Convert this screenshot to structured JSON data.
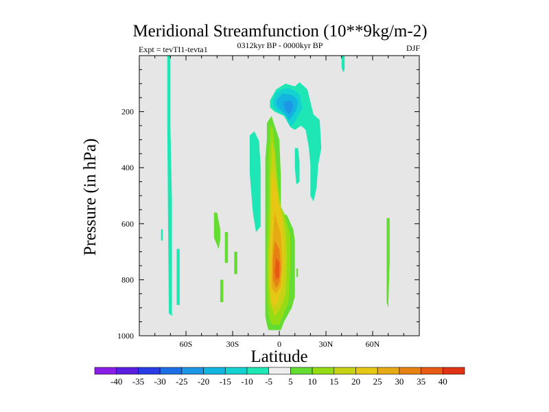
{
  "chart_data": {
    "type": "contour",
    "title": "Meridional Streamfunction (10**9kg/m-2)",
    "subtitle_left": "Expt = tevTI1-tevta1",
    "subtitle_center": "0312kyr BP - 0000kyr BP",
    "subtitle_right": "DJF",
    "xlabel": "Latitude",
    "ylabel": "Pressure (in hPa)",
    "xlim": [
      -90,
      90
    ],
    "ylim": [
      1000,
      0
    ],
    "x_ticks": [
      {
        "value": -60,
        "label": "60S"
      },
      {
        "value": -30,
        "label": "30S"
      },
      {
        "value": 0,
        "label": "0"
      },
      {
        "value": 30,
        "label": "30N"
      },
      {
        "value": 60,
        "label": "60N"
      }
    ],
    "y_ticks": [
      {
        "value": 200,
        "label": "200"
      },
      {
        "value": 400,
        "label": "400"
      },
      {
        "value": 600,
        "label": "600"
      },
      {
        "value": 800,
        "label": "800"
      },
      {
        "value": 1000,
        "label": "1000"
      }
    ],
    "levels": [
      -40,
      -35,
      -30,
      -25,
      -20,
      -15,
      -10,
      -5,
      5,
      10,
      15,
      20,
      25,
      30,
      35,
      40
    ],
    "colors": [
      "#8a1ee6",
      "#5a1ee0",
      "#2a3ce6",
      "#1e6ee6",
      "#1e96e6",
      "#14b4e0",
      "#14d2d2",
      "#1ee6b4",
      "#eeeeee",
      "#64dc32",
      "#96dc14",
      "#c8d214",
      "#e6c814",
      "#e6aa14",
      "#e68214",
      "#e65a14",
      "#e03214"
    ],
    "background": "#e6e6e6",
    "regions": [
      {
        "level": "-5",
        "poly": [
          [
            -72,
            0
          ],
          [
            -70,
            0
          ],
          [
            -70,
            250
          ],
          [
            -69,
            520
          ],
          [
            -69,
            930
          ],
          [
            -71,
            920
          ],
          [
            -71.5,
            600
          ],
          [
            -72,
            250
          ]
        ]
      },
      {
        "level": "-5",
        "poly": [
          [
            -66,
            690
          ],
          [
            -64,
            690
          ],
          [
            -64,
            890
          ],
          [
            -66,
            890
          ]
        ]
      },
      {
        "level": "-5",
        "poly": [
          [
            -76,
            620
          ],
          [
            -75,
            620
          ],
          [
            -75,
            660
          ],
          [
            -76,
            660
          ]
        ]
      },
      {
        "level": "-5",
        "poly": [
          [
            40,
            0
          ],
          [
            42,
            0
          ],
          [
            42,
            50
          ],
          [
            41,
            60
          ],
          [
            40,
            40
          ]
        ]
      },
      {
        "level": "-5",
        "poly": [
          [
            -19,
            285
          ],
          [
            -16,
            270
          ],
          [
            -13,
            305
          ],
          [
            -12,
            400
          ],
          [
            -12,
            610
          ],
          [
            -15,
            630
          ],
          [
            -17,
            560
          ],
          [
            -19,
            420
          ]
        ]
      },
      {
        "level": "-5",
        "poly": [
          [
            -6,
            160
          ],
          [
            -2,
            120
          ],
          [
            4,
            100
          ],
          [
            10,
            110
          ],
          [
            13,
            95
          ],
          [
            18,
            120
          ],
          [
            22,
            210
          ],
          [
            26,
            230
          ],
          [
            27,
            330
          ],
          [
            25,
            390
          ],
          [
            24,
            470
          ],
          [
            22,
            520
          ],
          [
            20,
            500
          ],
          [
            20,
            390
          ],
          [
            19,
            330
          ],
          [
            17,
            265
          ],
          [
            14,
            250
          ],
          [
            10,
            265
          ],
          [
            7,
            255
          ],
          [
            3,
            215
          ],
          [
            -3,
            200
          ],
          [
            -6,
            185
          ]
        ]
      },
      {
        "level": "-5",
        "poly": [
          [
            10,
            330
          ],
          [
            12,
            330
          ],
          [
            13,
            380
          ],
          [
            13,
            450
          ],
          [
            11,
            460
          ],
          [
            10,
            400
          ]
        ]
      },
      {
        "level": "-10",
        "poly": [
          [
            -4,
            160
          ],
          [
            -2,
            130
          ],
          [
            5,
            115
          ],
          [
            10,
            125
          ],
          [
            13,
            140
          ],
          [
            15,
            185
          ],
          [
            12,
            215
          ],
          [
            9,
            245
          ],
          [
            7,
            250
          ],
          [
            4,
            215
          ],
          [
            -2,
            195
          ],
          [
            -4,
            180
          ]
        ]
      },
      {
        "level": "-15",
        "poly": [
          [
            -2,
            160
          ],
          [
            2,
            135
          ],
          [
            8,
            140
          ],
          [
            12,
            160
          ],
          [
            11,
            195
          ],
          [
            8,
            220
          ],
          [
            6,
            230
          ],
          [
            3,
            205
          ],
          [
            0,
            190
          ],
          [
            -2,
            175
          ]
        ]
      },
      {
        "level": "-20",
        "poly": [
          [
            3,
            165
          ],
          [
            7,
            160
          ],
          [
            9,
            175
          ],
          [
            8,
            200
          ],
          [
            6,
            210
          ],
          [
            4,
            195
          ],
          [
            3,
            180
          ]
        ]
      },
      {
        "level": "5",
        "poly": [
          [
            -42,
            560
          ],
          [
            -40,
            560
          ],
          [
            -38,
            620
          ],
          [
            -38,
            660
          ],
          [
            -39,
            690
          ],
          [
            -42,
            650
          ]
        ]
      },
      {
        "level": "5",
        "poly": [
          [
            -35,
            630
          ],
          [
            -33,
            630
          ],
          [
            -33,
            740
          ],
          [
            -35,
            740
          ]
        ]
      },
      {
        "level": "5",
        "poly": [
          [
            -29,
            700
          ],
          [
            -27,
            700
          ],
          [
            -27,
            780
          ],
          [
            -29,
            780
          ]
        ]
      },
      {
        "level": "5",
        "poly": [
          [
            -38,
            800
          ],
          [
            -36,
            800
          ],
          [
            -36,
            880
          ],
          [
            -38,
            880
          ]
        ]
      },
      {
        "level": "5",
        "poly": [
          [
            -8,
            240
          ],
          [
            -5,
            215
          ],
          [
            -3,
            250
          ],
          [
            0,
            300
          ],
          [
            1,
            430
          ],
          [
            1,
            560
          ],
          [
            5,
            570
          ],
          [
            9,
            620
          ],
          [
            10,
            660
          ],
          [
            10,
            750
          ],
          [
            10,
            860
          ],
          [
            8,
            900
          ],
          [
            6,
            920
          ],
          [
            3,
            950
          ],
          [
            1,
            980
          ],
          [
            -7,
            980
          ],
          [
            -8,
            960
          ],
          [
            -9,
            930
          ],
          [
            -9,
            880
          ],
          [
            -9,
            760
          ],
          [
            -9,
            640
          ],
          [
            -9,
            500
          ],
          [
            -9,
            370
          ],
          [
            -8,
            300
          ]
        ]
      },
      {
        "level": "5",
        "poly": [
          [
            11,
            760
          ],
          [
            12,
            760
          ],
          [
            12,
            790
          ],
          [
            11,
            790
          ]
        ]
      },
      {
        "level": "5",
        "poly": [
          [
            69,
            580
          ],
          [
            71,
            580
          ],
          [
            71,
            730
          ],
          [
            70,
            900
          ],
          [
            69,
            880
          ],
          [
            69,
            730
          ]
        ]
      },
      {
        "level": "10",
        "poly": [
          [
            -6,
            250
          ],
          [
            -4,
            260
          ],
          [
            -3,
            330
          ],
          [
            -1,
            450
          ],
          [
            1,
            540
          ],
          [
            3,
            560
          ],
          [
            5,
            600
          ],
          [
            7,
            640
          ],
          [
            7,
            760
          ],
          [
            6,
            880
          ],
          [
            3,
            920
          ],
          [
            0,
            960
          ],
          [
            -5,
            960
          ],
          [
            -7,
            920
          ],
          [
            -8,
            820
          ],
          [
            -8,
            680
          ],
          [
            -7,
            520
          ],
          [
            -7,
            380
          ],
          [
            -6,
            280
          ]
        ]
      },
      {
        "level": "15",
        "poly": [
          [
            -5,
            300
          ],
          [
            -3,
            340
          ],
          [
            -2,
            430
          ],
          [
            0,
            520
          ],
          [
            2,
            560
          ],
          [
            4,
            620
          ],
          [
            5,
            720
          ],
          [
            4,
            850
          ],
          [
            1,
            900
          ],
          [
            -3,
            930
          ],
          [
            -6,
            880
          ],
          [
            -7,
            760
          ],
          [
            -6,
            620
          ],
          [
            -6,
            460
          ],
          [
            -5,
            360
          ]
        ]
      },
      {
        "level": "20",
        "poly": [
          [
            -4,
            400
          ],
          [
            -2,
            480
          ],
          [
            0,
            540
          ],
          [
            2,
            590
          ],
          [
            3,
            700
          ],
          [
            2,
            820
          ],
          [
            -1,
            880
          ],
          [
            -4,
            900
          ],
          [
            -6,
            840
          ],
          [
            -6,
            700
          ],
          [
            -5,
            560
          ],
          [
            -5,
            470
          ]
        ]
      },
      {
        "level": "25",
        "poly": [
          [
            -3,
            560
          ],
          [
            -1,
            600
          ],
          [
            1,
            640
          ],
          [
            2,
            740
          ],
          [
            1,
            820
          ],
          [
            -2,
            850
          ],
          [
            -5,
            830
          ],
          [
            -5,
            740
          ],
          [
            -4,
            640
          ]
        ]
      },
      {
        "level": "30",
        "poly": [
          [
            -3,
            660
          ],
          [
            0,
            690
          ],
          [
            1,
            760
          ],
          [
            0,
            810
          ],
          [
            -2,
            830
          ],
          [
            -4,
            800
          ],
          [
            -4,
            720
          ]
        ]
      },
      {
        "level": "35",
        "poly": [
          [
            -2,
            720
          ],
          [
            0,
            740
          ],
          [
            0,
            790
          ],
          [
            -2,
            800
          ],
          [
            -3,
            770
          ]
        ]
      }
    ]
  }
}
